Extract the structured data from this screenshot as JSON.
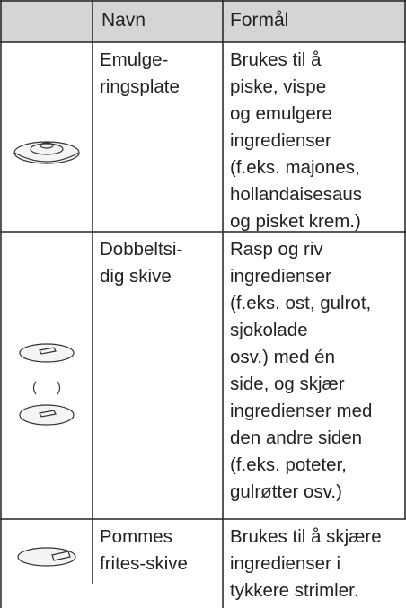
{
  "table": {
    "header": [
      "Navn",
      "Formål"
    ],
    "rows": [
      {
        "name": [
          "Emulge-",
          "ringsplate"
        ],
        "purpose": [
          "Brukes til å",
          "piske, vispe",
          "og emulgere",
          "ingredienser",
          "(f.eks. majones,",
          "hollandaisesaus",
          "og pisket krem.)"
        ]
      },
      {
        "name": [
          "Dobbeltsi-",
          "dig skive"
        ],
        "purpose": [
          "Rasp og riv",
          "ingredienser",
          "(f.eks. ost, gulrot,",
          "sjokolade",
          "osv.) med én",
          "side, og skjær",
          "ingredienser med",
          "den andre siden",
          "(f.eks. poteter,",
          "gulrøtter osv.)"
        ]
      },
      {
        "name": [
          "Pommes",
          "frites-skive"
        ],
        "purpose": [
          "Brukes til å skjære",
          "ingredienser i",
          "tykkere strimler."
        ]
      }
    ]
  }
}
